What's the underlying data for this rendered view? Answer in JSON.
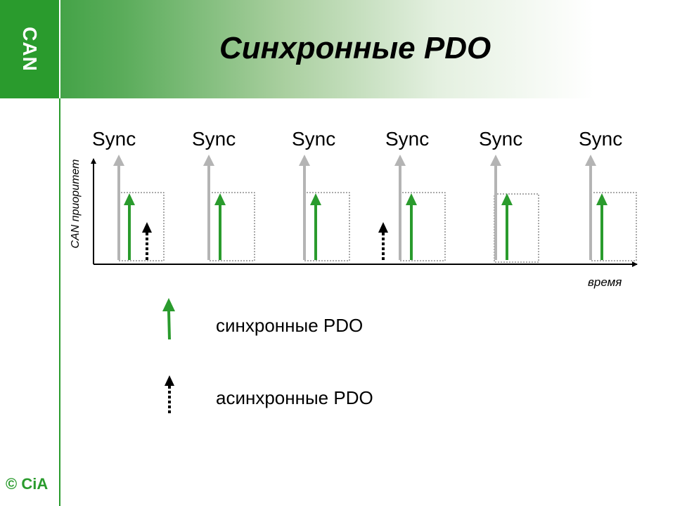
{
  "slide": {
    "title": "Синхронные PDO",
    "logo": "CAN",
    "copyright": "© CiA"
  },
  "diagram": {
    "sync_label": "Sync",
    "sync_labels": [
      "Sync",
      "Sync",
      "Sync",
      "Sync",
      "Sync",
      "Sync"
    ],
    "y_axis_label": "CAN приоритет",
    "x_axis_label": "время",
    "async_pdo_after_sync": [
      1,
      4
    ]
  },
  "legend": {
    "sync_pdo": "синхронные PDO",
    "async_pdo": "асинхронные PDO"
  },
  "colors": {
    "green": "#2a9b2d",
    "gray": "#b4b4b4",
    "black": "#000000"
  }
}
